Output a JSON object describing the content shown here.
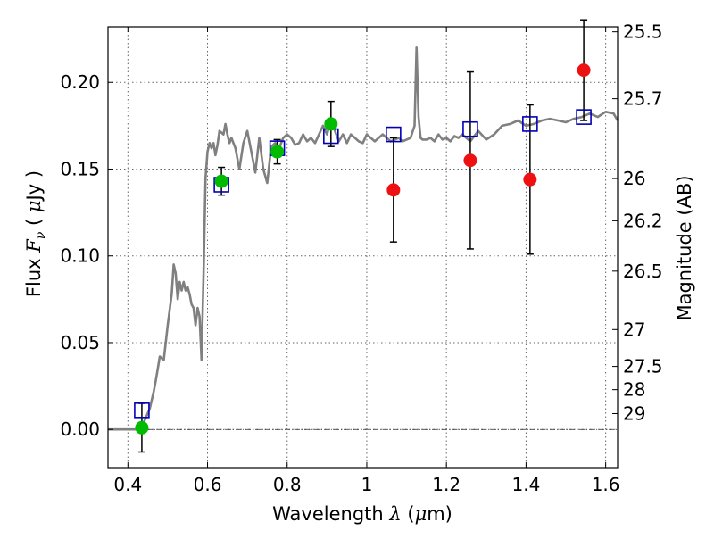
{
  "chart_data": {
    "type": "scatter",
    "xlabel": {
      "prefix": "Wavelength  ",
      "symbol": "λ",
      "suffix_open": " (",
      "mu": "μ",
      "suffix_close": "m)"
    },
    "ylabel": {
      "prefix": "Flux  ",
      "symbol": "F",
      "subscript": "ν",
      "unit_open": "  (  ",
      "mu": "μ",
      "unit_close": "Jy  )"
    },
    "y2label": "Magnitude (AB)",
    "xlim": [
      0.35,
      1.63
    ],
    "ylim": [
      -0.022,
      0.232
    ],
    "xticks": [
      0.4,
      0.6,
      0.8,
      1.0,
      1.2,
      1.4,
      1.6
    ],
    "xtick_labels": [
      "0.4",
      "0.6",
      "0.8",
      "1",
      "1.2",
      "1.4",
      "1.6"
    ],
    "yticks": [
      0.0,
      0.05,
      0.1,
      0.15,
      0.2
    ],
    "ytick_labels": [
      "0.00",
      "0.05",
      "0.10",
      "0.15",
      "0.20"
    ],
    "mag_ticks": [
      25.5,
      25.7,
      26,
      26.2,
      26.5,
      27,
      27.5,
      28,
      29
    ],
    "mag_tick_labels": [
      "25.5",
      "25.7",
      "26",
      "26.2",
      "26.5",
      "27",
      "27.5",
      "28",
      "29"
    ],
    "grid": true,
    "colors": {
      "model": "#808080",
      "detected": "#00bb00",
      "nondetected": "#ee1111",
      "model_box": "#0000bb",
      "errorbar": "#000000"
    },
    "model_spectrum": {
      "x": [
        0.35,
        0.42,
        0.44,
        0.455,
        0.465,
        0.47,
        0.475,
        0.48,
        0.49,
        0.5,
        0.51,
        0.515,
        0.52,
        0.525,
        0.53,
        0.535,
        0.54,
        0.545,
        0.55,
        0.555,
        0.56,
        0.565,
        0.57,
        0.575,
        0.58,
        0.585,
        0.59,
        0.595,
        0.6,
        0.605,
        0.61,
        0.615,
        0.62,
        0.625,
        0.63,
        0.64,
        0.645,
        0.65,
        0.655,
        0.66,
        0.67,
        0.68,
        0.69,
        0.7,
        0.71,
        0.72,
        0.73,
        0.74,
        0.75,
        0.76,
        0.77,
        0.78,
        0.79,
        0.8,
        0.81,
        0.82,
        0.83,
        0.84,
        0.85,
        0.86,
        0.87,
        0.88,
        0.89,
        0.9,
        0.91,
        0.92,
        0.93,
        0.94,
        0.95,
        0.96,
        0.97,
        0.98,
        0.99,
        1.0,
        1.01,
        1.02,
        1.03,
        1.04,
        1.05,
        1.06,
        1.07,
        1.08,
        1.09,
        1.1,
        1.11,
        1.12,
        1.125,
        1.13,
        1.135,
        1.14,
        1.15,
        1.16,
        1.17,
        1.18,
        1.19,
        1.2,
        1.21,
        1.22,
        1.23,
        1.24,
        1.25,
        1.26,
        1.28,
        1.3,
        1.32,
        1.34,
        1.36,
        1.38,
        1.4,
        1.42,
        1.44,
        1.46,
        1.48,
        1.5,
        1.52,
        1.54,
        1.56,
        1.58,
        1.6,
        1.62,
        1.63
      ],
      "y": [
        0.0,
        0.0,
        0.004,
        0.012,
        0.022,
        0.028,
        0.035,
        0.042,
        0.04,
        0.06,
        0.078,
        0.095,
        0.09,
        0.075,
        0.085,
        0.08,
        0.085,
        0.08,
        0.082,
        0.078,
        0.072,
        0.07,
        0.06,
        0.07,
        0.065,
        0.04,
        0.09,
        0.145,
        0.16,
        0.165,
        0.162,
        0.165,
        0.158,
        0.164,
        0.172,
        0.17,
        0.176,
        0.17,
        0.165,
        0.168,
        0.162,
        0.15,
        0.165,
        0.172,
        0.16,
        0.148,
        0.168,
        0.15,
        0.142,
        0.163,
        0.165,
        0.162,
        0.168,
        0.17,
        0.168,
        0.164,
        0.165,
        0.17,
        0.166,
        0.168,
        0.165,
        0.17,
        0.175,
        0.17,
        0.178,
        0.172,
        0.166,
        0.17,
        0.165,
        0.17,
        0.168,
        0.166,
        0.165,
        0.17,
        0.168,
        0.166,
        0.168,
        0.17,
        0.168,
        0.166,
        0.167,
        0.168,
        0.166,
        0.167,
        0.168,
        0.175,
        0.22,
        0.18,
        0.168,
        0.167,
        0.167,
        0.168,
        0.166,
        0.17,
        0.167,
        0.168,
        0.166,
        0.169,
        0.168,
        0.17,
        0.168,
        0.166,
        0.172,
        0.167,
        0.17,
        0.175,
        0.176,
        0.178,
        0.175,
        0.176,
        0.178,
        0.179,
        0.178,
        0.177,
        0.179,
        0.18,
        0.182,
        0.18,
        0.183,
        0.182,
        0.178
      ]
    },
    "detected": [
      {
        "x": 0.435,
        "y": 0.001,
        "yerr": 0.014
      },
      {
        "x": 0.635,
        "y": 0.143,
        "yerr": 0.008
      },
      {
        "x": 0.775,
        "y": 0.16,
        "yerr": 0.007
      },
      {
        "x": 0.91,
        "y": 0.176,
        "yerr": 0.013
      }
    ],
    "nondetected": [
      {
        "x": 1.067,
        "y": 0.138,
        "yerr": 0.03
      },
      {
        "x": 1.26,
        "y": 0.155,
        "yerr": 0.051
      },
      {
        "x": 1.41,
        "y": 0.144,
        "yerr": 0.043
      },
      {
        "x": 1.545,
        "y": 0.207,
        "yerr": 0.029
      }
    ],
    "model_boxes": [
      {
        "x": 0.435,
        "y": 0.011
      },
      {
        "x": 0.635,
        "y": 0.141
      },
      {
        "x": 0.775,
        "y": 0.162
      },
      {
        "x": 0.91,
        "y": 0.169
      },
      {
        "x": 1.067,
        "y": 0.17
      },
      {
        "x": 1.26,
        "y": 0.173
      },
      {
        "x": 1.41,
        "y": 0.176
      },
      {
        "x": 1.545,
        "y": 0.18
      }
    ]
  }
}
